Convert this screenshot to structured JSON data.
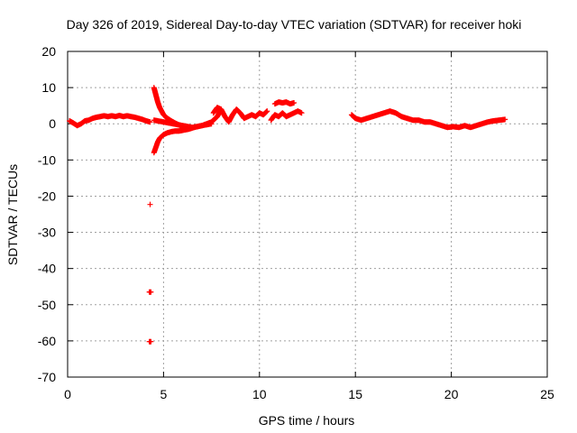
{
  "chart_data": {
    "type": "scatter",
    "title": "Day 326 of 2019, Sidereal Day-to-day VTEC variation (SDTVAR) for receiver hoki",
    "xlabel": "GPS time / hours",
    "ylabel": "SDTVAR / TECUs",
    "xlim": [
      0,
      25
    ],
    "ylim": [
      -70,
      20
    ],
    "xticks": [
      0,
      5,
      10,
      15,
      20,
      25
    ],
    "yticks": [
      20,
      10,
      0,
      -10,
      -20,
      -30,
      -40,
      -50,
      -60,
      -70
    ],
    "grid": true,
    "marker": "+",
    "color": "#ff0000",
    "series": [
      {
        "name": "main",
        "segments": [
          {
            "x": [
              0.1,
              0.3,
              0.5,
              0.7,
              0.9,
              1.1,
              1.3,
              1.5,
              1.7,
              1.9,
              2.1,
              2.3,
              2.5,
              2.7,
              2.9,
              3.1,
              3.3,
              3.5,
              3.7,
              3.9,
              4.1,
              4.3
            ],
            "y": [
              0.8,
              0.2,
              -0.5,
              0.0,
              0.8,
              1.0,
              1.5,
              1.8,
              2.0,
              2.2,
              2.0,
              2.2,
              2.0,
              2.3,
              2.0,
              2.2,
              2.0,
              1.8,
              1.5,
              1.2,
              0.8,
              0.5
            ]
          },
          {
            "x": [
              4.5,
              4.6,
              4.7,
              4.8,
              4.9,
              5.0,
              5.1,
              5.2,
              5.4,
              5.6,
              5.8,
              6.0
            ],
            "y": [
              10.0,
              8.0,
              6.0,
              4.5,
              3.5,
              2.5,
              2.0,
              1.5,
              0.8,
              0.2,
              -0.3,
              -0.8
            ]
          },
          {
            "x": [
              4.5,
              4.6,
              4.7,
              4.8,
              4.9,
              5.0,
              5.2,
              5.4,
              5.6,
              5.8,
              6.0,
              6.3,
              6.6,
              7.0,
              7.5
            ],
            "y": [
              -8.0,
              -6.5,
              -5.0,
              -4.0,
              -3.5,
              -3.0,
              -2.5,
              -2.2,
              -2.0,
              -2.0,
              -1.8,
              -1.5,
              -1.0,
              -0.5,
              0.0
            ]
          },
          {
            "x": [
              4.5,
              5.0,
              5.5,
              6.0,
              6.5,
              7.0,
              7.5,
              7.8,
              8.0
            ],
            "y": [
              1.0,
              0.5,
              0.0,
              -0.5,
              -1.0,
              -0.5,
              0.5,
              2.0,
              4.0
            ]
          },
          {
            "x": [
              7.6,
              7.8,
              8.0,
              8.2,
              8.4,
              8.6,
              8.8,
              9.0,
              9.2,
              9.4,
              9.6,
              9.8,
              10.0,
              10.2,
              10.4
            ],
            "y": [
              3.0,
              4.5,
              4.0,
              2.0,
              0.5,
              2.5,
              4.0,
              3.0,
              1.5,
              2.0,
              2.5,
              2.0,
              3.0,
              2.5,
              3.5
            ]
          },
          {
            "x": [
              10.8,
              11.0,
              11.2,
              11.4,
              11.6,
              11.8
            ],
            "y": [
              5.5,
              6.0,
              5.8,
              6.0,
              5.5,
              5.8
            ]
          },
          {
            "x": [
              10.6,
              10.8,
              11.0,
              11.2,
              11.4,
              11.6,
              11.8,
              12.0,
              12.2
            ],
            "y": [
              1.0,
              2.5,
              2.0,
              3.0,
              2.0,
              2.5,
              3.0,
              3.5,
              3.0
            ]
          },
          {
            "x": [
              14.8,
              15.0,
              15.3,
              15.6,
              15.9,
              16.2,
              16.5,
              16.8,
              17.1,
              17.4,
              17.7,
              18.0,
              18.3,
              18.6,
              18.9,
              19.2,
              19.5,
              19.8,
              20.1,
              20.4,
              20.7,
              21.0,
              21.3,
              21.6,
              21.9,
              22.2,
              22.5,
              22.8
            ],
            "y": [
              2.5,
              1.5,
              1.0,
              1.5,
              2.0,
              2.5,
              3.0,
              3.5,
              3.0,
              2.0,
              1.5,
              1.0,
              1.0,
              0.5,
              0.5,
              0.0,
              -0.5,
              -1.0,
              -0.8,
              -1.0,
              -0.5,
              -1.0,
              -0.5,
              0.0,
              0.5,
              0.8,
              1.0,
              1.2
            ]
          }
        ]
      },
      {
        "name": "outliers",
        "x": [
          4.3,
          4.3,
          4.3
        ],
        "y": [
          -22.3,
          -46.5,
          -60.2
        ]
      }
    ]
  }
}
